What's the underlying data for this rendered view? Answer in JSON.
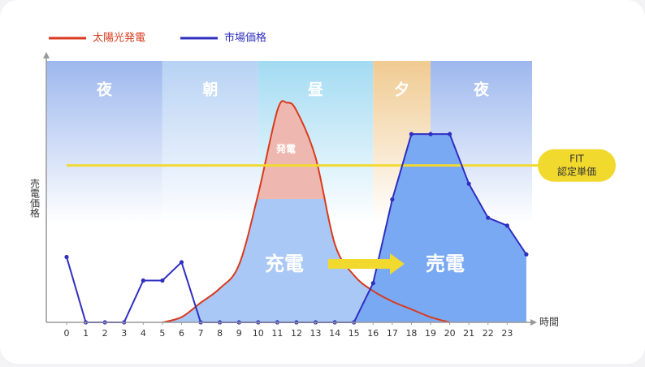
{
  "chart_data": {
    "type": "line",
    "ylabel": "売電価格",
    "xlabel": "時間",
    "xlim": [
      -1.06,
      24.3
    ],
    "ylim": [
      0,
      100
    ],
    "xticks": [
      0,
      1,
      2,
      3,
      4,
      5,
      6,
      7,
      8,
      9,
      10,
      11,
      12,
      13,
      14,
      15,
      16,
      17,
      18,
      19,
      20,
      21,
      22,
      23
    ],
    "periods": [
      {
        "label": "夜",
        "from": -1.06,
        "to": 5,
        "color": "#9db8ee"
      },
      {
        "label": "朝",
        "from": 5,
        "to": 10,
        "color": "#b7d2f4"
      },
      {
        "label": "昼",
        "from": 10,
        "to": 16,
        "color": "#a3dbf3"
      },
      {
        "label": "夕",
        "from": 16,
        "to": 19,
        "color": "#f0cb92"
      },
      {
        "label": "夜",
        "from": 19,
        "to": 24.3,
        "color": "#9db8ee"
      }
    ],
    "series": [
      {
        "name": "太陽光発電",
        "color": "#d93a1e",
        "x": [
          5,
          6,
          7,
          8,
          9,
          10,
          11,
          11.5,
          12,
          13,
          14,
          15,
          16,
          17,
          18,
          19,
          20
        ],
        "values": [
          0,
          2,
          7.5,
          13,
          22,
          49,
          81,
          84,
          81,
          63,
          30,
          18,
          12,
          8,
          5,
          2,
          0
        ]
      },
      {
        "name": "市場価格",
        "color": "#2f2fc0",
        "x": [
          0,
          1,
          2,
          3,
          4,
          5,
          6,
          7,
          8,
          9,
          10,
          11,
          12,
          13,
          14,
          15,
          16,
          17,
          18,
          19,
          20,
          21,
          22,
          23,
          24
        ],
        "values": [
          25,
          0,
          0,
          0,
          16,
          16,
          23,
          0,
          0,
          0,
          0,
          0,
          0,
          0,
          0,
          0,
          15,
          47,
          72,
          72,
          72,
          53,
          40,
          37,
          26
        ]
      }
    ],
    "fit": {
      "value": 60,
      "label": [
        "FIT",
        "認定単価"
      ],
      "color": "#f2d92e"
    },
    "annotations": {
      "generation": "発電",
      "charge": "充電",
      "sell": "売電"
    }
  }
}
